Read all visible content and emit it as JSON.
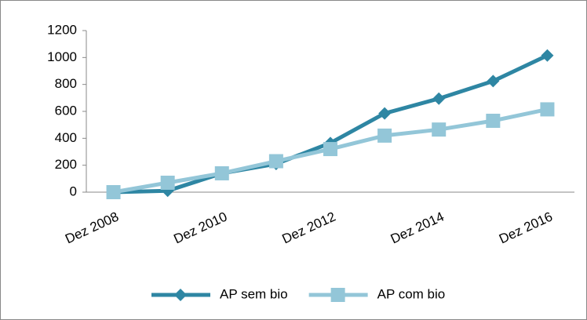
{
  "chart_data": {
    "type": "line",
    "categories": [
      "Dez 2008",
      null,
      "Dez 2010",
      null,
      "Dez 2012",
      null,
      "Dez 2014",
      null,
      "Dez 2016"
    ],
    "series": [
      {
        "name": "AP sem bio",
        "color": "#2e86a3",
        "marker": "diamond",
        "values": [
          0,
          10,
          140,
          210,
          365,
          585,
          695,
          825,
          1015
        ]
      },
      {
        "name": "AP com bio",
        "color": "#93c6d8",
        "marker": "square",
        "values": [
          0,
          70,
          140,
          230,
          320,
          420,
          465,
          530,
          615
        ]
      }
    ],
    "ylim": [
      0,
      1200
    ],
    "yticks": [
      0,
      200,
      400,
      600,
      800,
      1000,
      1200
    ],
    "grid": false,
    "legend": "bottom"
  }
}
